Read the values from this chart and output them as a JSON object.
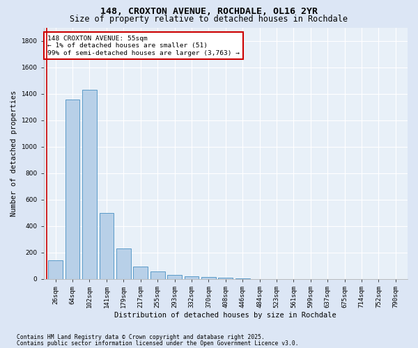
{
  "title": "148, CROXTON AVENUE, ROCHDALE, OL16 2YR",
  "subtitle": "Size of property relative to detached houses in Rochdale",
  "xlabel": "Distribution of detached houses by size in Rochdale",
  "ylabel": "Number of detached properties",
  "categories": [
    "26sqm",
    "64sqm",
    "102sqm",
    "141sqm",
    "179sqm",
    "217sqm",
    "255sqm",
    "293sqm",
    "332sqm",
    "370sqm",
    "408sqm",
    "446sqm",
    "484sqm",
    "523sqm",
    "561sqm",
    "599sqm",
    "637sqm",
    "675sqm",
    "714sqm",
    "752sqm",
    "790sqm"
  ],
  "values": [
    140,
    1360,
    1430,
    500,
    230,
    95,
    55,
    30,
    20,
    15,
    10,
    5,
    0,
    0,
    0,
    0,
    0,
    0,
    0,
    0,
    0
  ],
  "bar_color": "#b8d0e8",
  "bar_edge_color": "#5a9ac8",
  "annotation_box_color": "#ffffff",
  "annotation_box_edge": "#cc0000",
  "vline_color": "#cc0000",
  "annotation_line1": "148 CROXTON AVENUE: 55sqm",
  "annotation_line2": "← 1% of detached houses are smaller (51)",
  "annotation_line3": "99% of semi-detached houses are larger (3,763) →",
  "footnote1": "Contains HM Land Registry data © Crown copyright and database right 2025.",
  "footnote2": "Contains public sector information licensed under the Open Government Licence v3.0.",
  "ylim": [
    0,
    1900
  ],
  "yticks": [
    0,
    200,
    400,
    600,
    800,
    1000,
    1200,
    1400,
    1600,
    1800
  ],
  "bg_color": "#dce6f5",
  "plot_bg_color": "#e8f0f8",
  "title_fontsize": 9.5,
  "subtitle_fontsize": 8.5,
  "axis_label_fontsize": 7.5,
  "tick_fontsize": 6.5,
  "annot_fontsize": 6.8,
  "footnote_fontsize": 5.8,
  "vline_x": -0.5
}
